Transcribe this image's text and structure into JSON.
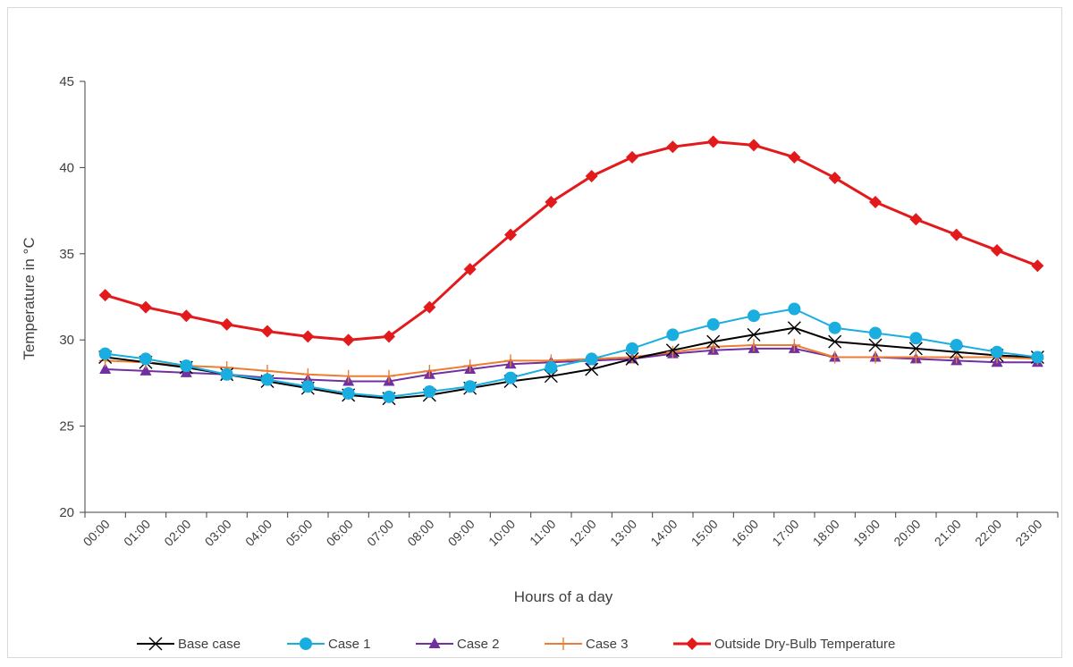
{
  "chart_data": {
    "type": "line",
    "title": "",
    "xlabel": "Hours of a day",
    "ylabel": "Temperature in °C",
    "ylim": [
      20,
      45
    ],
    "yticks": [
      20,
      25,
      30,
      35,
      40,
      45
    ],
    "grid": false,
    "legend_position": "bottom",
    "categories": [
      "00:00",
      "01:00",
      "02:00",
      "03:00",
      "04:00",
      "05:00",
      "06:00",
      "07:00",
      "08:00",
      "09:00",
      "10:00",
      "11:00",
      "12:00",
      "13:00",
      "14:00",
      "15:00",
      "16:00",
      "17:00",
      "18:00",
      "19:00",
      "20:00",
      "21:00",
      "22:00",
      "23:00"
    ],
    "series": [
      {
        "name": "Base case",
        "color": "#000000",
        "marker": "x",
        "values": [
          29.0,
          28.7,
          28.4,
          28.0,
          27.6,
          27.2,
          26.8,
          26.6,
          26.8,
          27.2,
          27.6,
          27.9,
          28.3,
          28.9,
          29.4,
          29.9,
          30.3,
          30.7,
          29.9,
          29.7,
          29.5,
          29.3,
          29.1,
          29.0
        ]
      },
      {
        "name": "Case 1",
        "color": "#1aaee0",
        "marker": "circle",
        "values": [
          29.2,
          28.9,
          28.5,
          28.0,
          27.7,
          27.3,
          26.9,
          26.7,
          27.0,
          27.3,
          27.8,
          28.4,
          28.9,
          29.5,
          30.3,
          30.9,
          31.4,
          31.8,
          30.7,
          30.4,
          30.1,
          29.7,
          29.3,
          29.0
        ]
      },
      {
        "name": "Case 2",
        "color": "#7030a0",
        "marker": "triangle",
        "values": [
          28.3,
          28.2,
          28.1,
          28.0,
          27.8,
          27.7,
          27.6,
          27.6,
          28.0,
          28.3,
          28.6,
          28.7,
          28.8,
          28.9,
          29.2,
          29.4,
          29.5,
          29.5,
          29.0,
          29.0,
          28.9,
          28.8,
          28.7,
          28.7
        ]
      },
      {
        "name": "Case 3",
        "color": "#ed7d31",
        "marker": "plus",
        "values": [
          28.8,
          28.7,
          28.5,
          28.4,
          28.2,
          28.0,
          27.9,
          27.9,
          28.2,
          28.5,
          28.8,
          28.8,
          28.9,
          29.0,
          29.3,
          29.6,
          29.7,
          29.7,
          29.0,
          29.0,
          29.0,
          29.0,
          29.0,
          28.9
        ]
      },
      {
        "name": "Outside Dry-Bulb Temperature",
        "color": "#e31a1c",
        "marker": "diamond",
        "values": [
          32.6,
          31.9,
          31.4,
          30.9,
          30.5,
          30.2,
          30.0,
          30.2,
          31.9,
          34.1,
          36.1,
          38.0,
          39.5,
          40.6,
          41.2,
          41.5,
          41.3,
          40.6,
          39.4,
          38.0,
          37.0,
          36.1,
          35.2,
          34.3
        ]
      }
    ]
  }
}
